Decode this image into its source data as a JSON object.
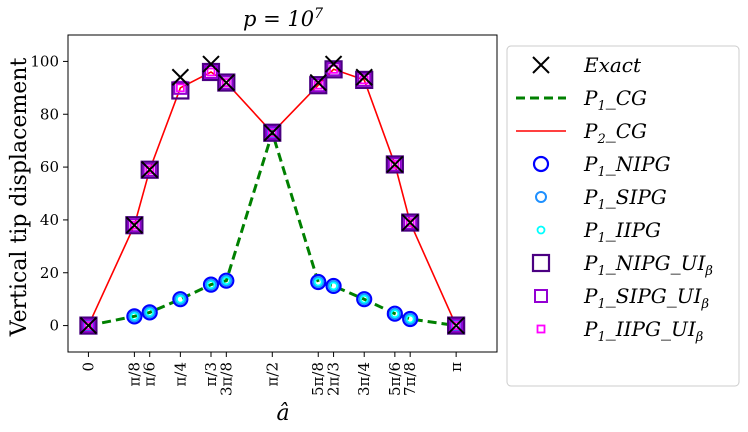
{
  "chart_data": {
    "type": "line",
    "title": "p = 10^7",
    "title_parts": {
      "base": "p = 10",
      "exp": "7"
    },
    "xlabel": "â",
    "ylabel": "Vertical tip displacement",
    "xlim": [
      -0.1745,
      3.4907
    ],
    "ylim": [
      -10,
      110
    ],
    "yticks": [
      0,
      20,
      40,
      60,
      80,
      100
    ],
    "xticks": [
      {
        "value": 0,
        "label": "0"
      },
      {
        "value": 0.3927,
        "label": "π/8"
      },
      {
        "value": 0.5236,
        "label": "π/6"
      },
      {
        "value": 0.7854,
        "label": "π/4"
      },
      {
        "value": 1.0472,
        "label": "π/3"
      },
      {
        "value": 1.1781,
        "label": "3π/8"
      },
      {
        "value": 1.5708,
        "label": "π/2"
      },
      {
        "value": 1.9635,
        "label": "5π/8"
      },
      {
        "value": 2.0944,
        "label": "2π/3"
      },
      {
        "value": 2.3562,
        "label": "3π/4"
      },
      {
        "value": 2.618,
        "label": "5π/6"
      },
      {
        "value": 2.7489,
        "label": "7π/8"
      },
      {
        "value": 3.1416,
        "label": "π"
      }
    ],
    "x": [
      0,
      0.3927,
      0.5236,
      0.7854,
      1.0472,
      1.1781,
      1.5708,
      1.9635,
      2.0944,
      2.3562,
      2.618,
      2.7489,
      3.1416
    ],
    "legend_position": "outside-right",
    "series": [
      {
        "name": "Exact",
        "label_main": "Exact",
        "label_sub": "",
        "style": "marker-x",
        "color": "#000000",
        "values": [
          0,
          38,
          59,
          94,
          99,
          92,
          73,
          92,
          99,
          94,
          61,
          39,
          0
        ]
      },
      {
        "name": "P1_CG",
        "label_main": "P",
        "label_sub": "1",
        "label_tail": "_CG",
        "style": "dashed-line",
        "color": "#008000",
        "values": [
          0,
          3.5,
          5,
          10,
          15.5,
          17,
          73,
          16.5,
          15,
          10,
          4.5,
          2.5,
          0
        ]
      },
      {
        "name": "P2_CG",
        "label_main": "P",
        "label_sub": "2",
        "label_tail": "_CG",
        "style": "solid-line",
        "color": "#ff0000",
        "values": [
          0,
          38,
          59,
          90,
          96,
          92,
          73,
          91,
          97,
          93,
          61,
          39,
          0
        ]
      },
      {
        "name": "P1_NIPG",
        "label_main": "P",
        "label_sub": "1",
        "label_tail": "_NIPG",
        "style": "circle-large",
        "color": "#0000ff",
        "values": [
          0,
          3.5,
          5,
          10,
          15.5,
          17,
          73,
          16.5,
          15,
          10,
          4.5,
          2.5,
          0
        ]
      },
      {
        "name": "P1_SIPG",
        "label_main": "P",
        "label_sub": "1",
        "label_tail": "_SIPG",
        "style": "circle-medium",
        "color": "#1e90ff",
        "values": [
          0,
          3.5,
          5,
          10,
          15.5,
          17,
          73,
          16.5,
          15,
          10,
          4.5,
          2.5,
          0
        ]
      },
      {
        "name": "P1_IIPG",
        "label_main": "P",
        "label_sub": "1",
        "label_tail": "_IIPG",
        "style": "circle-small",
        "color": "#00ffff",
        "values": [
          0,
          3.5,
          5,
          10,
          15.5,
          17,
          73,
          16.5,
          15,
          10,
          4.5,
          2.5,
          0
        ]
      },
      {
        "name": "P1_NIPG_UIβ",
        "label_main": "P",
        "label_sub": "1",
        "label_tail": "_NIPG_UI",
        "label_tail_sub": "β",
        "style": "square-large",
        "color": "#4b0082",
        "values": [
          0,
          38,
          59,
          89,
          96,
          92,
          73,
          91,
          97,
          93,
          61,
          39,
          0
        ]
      },
      {
        "name": "P1_SIPG_UIβ",
        "label_main": "P",
        "label_sub": "1",
        "label_tail": "_SIPG_UI",
        "label_tail_sub": "β",
        "style": "square-medium",
        "color": "#9400d3",
        "values": [
          0,
          38,
          59,
          90,
          96,
          92,
          73,
          91,
          97,
          93,
          61,
          39,
          0
        ]
      },
      {
        "name": "P1_IIPG_UIβ",
        "label_main": "P",
        "label_sub": "1",
        "label_tail": "_IIPG_UI",
        "label_tail_sub": "β",
        "style": "square-small",
        "color": "#ff00ff",
        "values": [
          0,
          38,
          59,
          90,
          96,
          92,
          73,
          91,
          97,
          93,
          61,
          39,
          0
        ]
      }
    ]
  }
}
